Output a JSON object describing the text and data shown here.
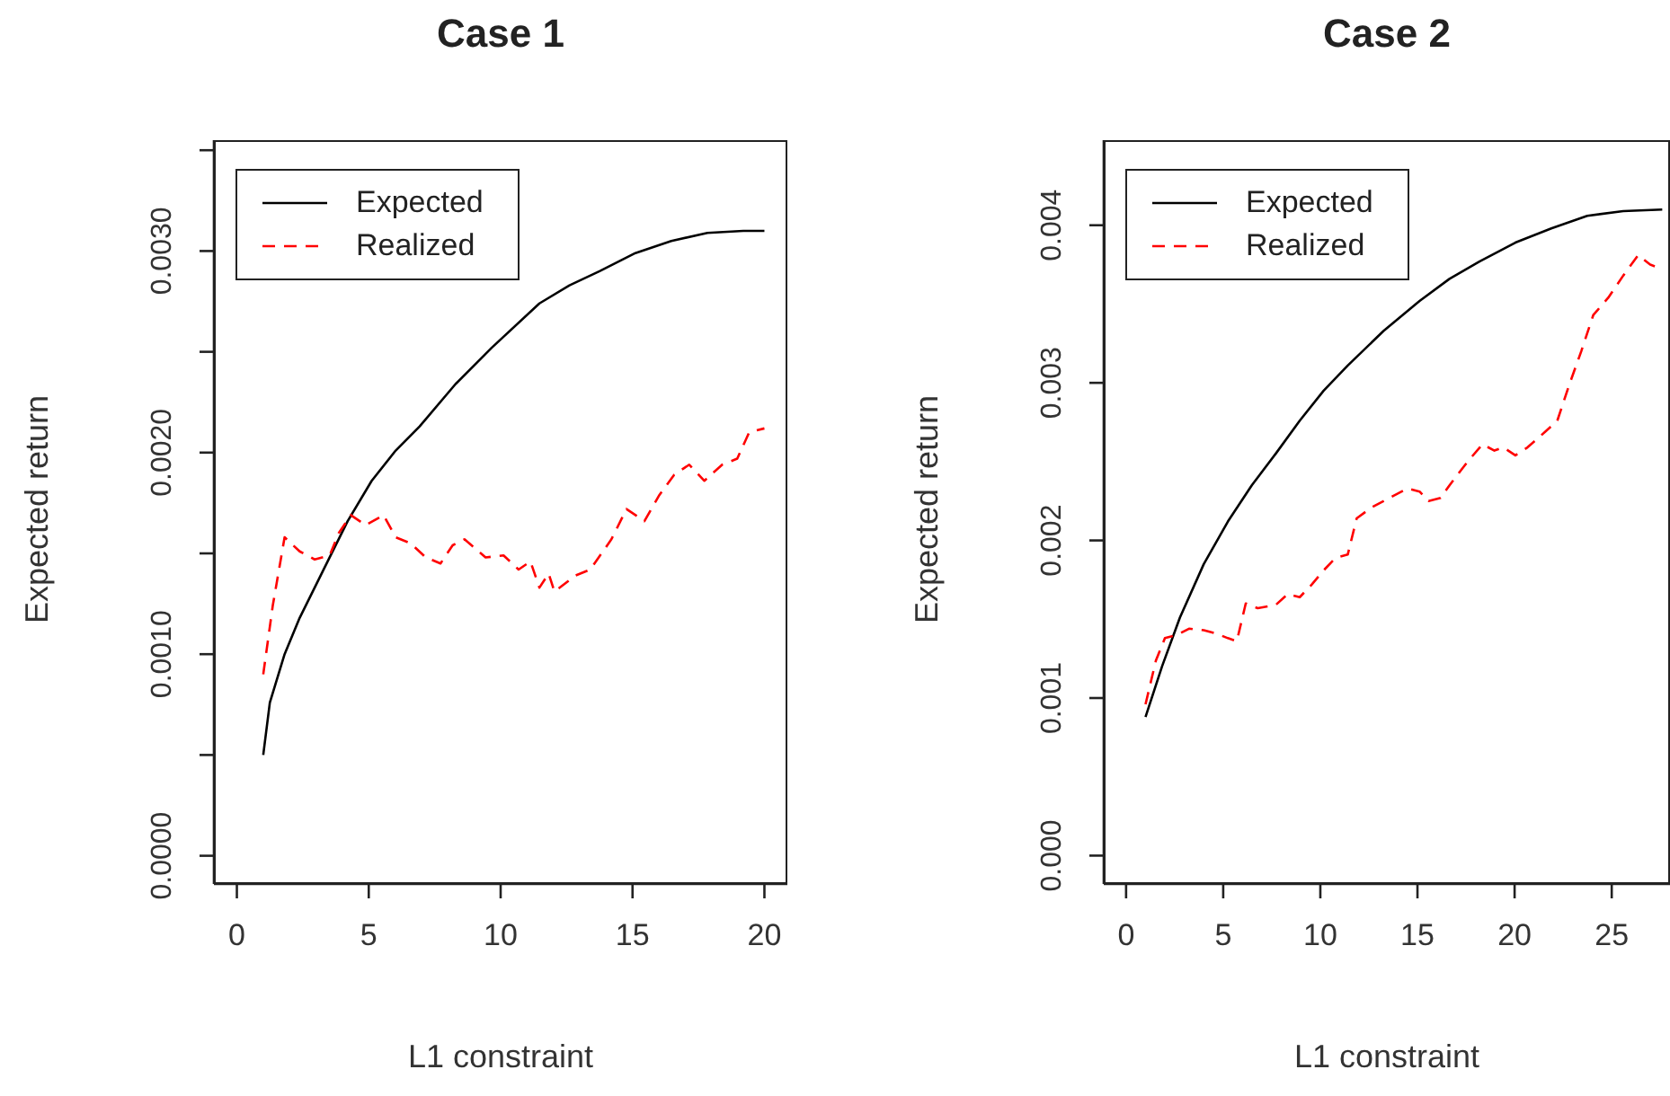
{
  "chart_data": [
    {
      "type": "line",
      "title": "Case 1",
      "xlabel": "L1 constraint",
      "ylabel": "Expected return",
      "legend": "top left",
      "grid": false,
      "marker": "none",
      "xlim": [
        -0.87,
        20.87
      ],
      "xticks": [
        0,
        5,
        10,
        15,
        20
      ],
      "ylim": [
        -0.00014,
        0.00355
      ],
      "yticks": [
        {
          "value": 0,
          "label": "0.0000"
        },
        {
          "value": 0.0005,
          "label": null
        },
        {
          "value": 0.001,
          "label": "0.0010"
        },
        {
          "value": 0.0015,
          "label": null
        },
        {
          "value": 0.002,
          "label": "0.0020"
        },
        {
          "value": 0.0025,
          "label": null
        },
        {
          "value": 0.003,
          "label": "0.0030"
        },
        {
          "value": 0.0035,
          "label": null
        }
      ],
      "series": [
        {
          "name": "Expected",
          "color": "#000000",
          "line_style": "solid",
          "x": [
            1,
            1.25,
            1.81,
            2.38,
            3.29,
            4.2,
            5.11,
            6.02,
            6.93,
            8.29,
            9.66,
            11.47,
            12.61,
            13.75,
            15.11,
            16.47,
            17.84,
            19.2,
            20
          ],
          "values": [
            0.0005,
            0.00076,
            0.001,
            0.00118,
            0.00142,
            0.00166,
            0.00186,
            0.00201,
            0.00213,
            0.00234,
            0.00252,
            0.00274,
            0.00283,
            0.0029,
            0.00299,
            0.00305,
            0.00309,
            0.0031,
            0.0031
          ]
        },
        {
          "name": "Realized",
          "color": "#ff0000",
          "line_style": "dashed",
          "x": [
            1,
            1.36,
            1.81,
            2.38,
            2.95,
            3.52,
            3.86,
            4.32,
            4.88,
            5.56,
            6.02,
            6.59,
            7.16,
            7.72,
            8.18,
            8.63,
            9.43,
            10.11,
            10.68,
            11.13,
            11.47,
            11.82,
            12.04,
            12.84,
            13.4,
            14.2,
            14.77,
            15.45,
            16.02,
            16.58,
            17.15,
            17.72,
            18.4,
            18.97,
            19.42,
            20
          ],
          "values": [
            0.0009,
            0.00124,
            0.00158,
            0.00151,
            0.00147,
            0.00149,
            0.0016,
            0.00169,
            0.00164,
            0.00169,
            0.00158,
            0.00155,
            0.00148,
            0.00145,
            0.00154,
            0.00157,
            0.00148,
            0.00149,
            0.00142,
            0.00146,
            0.00133,
            0.0014,
            0.00131,
            0.00139,
            0.00142,
            0.00157,
            0.00172,
            0.00166,
            0.00179,
            0.00189,
            0.00194,
            0.00186,
            0.00194,
            0.00197,
            0.0021,
            0.00212
          ]
        }
      ]
    },
    {
      "type": "line",
      "title": "Case 2",
      "xlabel": "L1 constraint",
      "ylabel": "Expected return",
      "legend": "top left",
      "grid": false,
      "marker": "none",
      "xlim": [
        -1.15,
        28
      ],
      "xticks": [
        0,
        5,
        10,
        15,
        20,
        25
      ],
      "ylim": [
        -0.00018,
        0.00454
      ],
      "yticks": [
        {
          "value": 0,
          "label": "0.000"
        },
        {
          "value": 0.001,
          "label": "0.001"
        },
        {
          "value": 0.002,
          "label": "0.002"
        },
        {
          "value": 0.003,
          "label": "0.003"
        },
        {
          "value": 0.004,
          "label": "0.004"
        }
      ],
      "series": [
        {
          "name": "Expected",
          "color": "#000000",
          "line_style": "solid",
          "x": [
            1,
            1.85,
            2.77,
            4,
            5.24,
            6.47,
            7.7,
            8.94,
            10.17,
            11.41,
            13.26,
            15.11,
            16.65,
            18.19,
            20.04,
            21.89,
            23.74,
            25.59,
            27.6
          ],
          "values": [
            0.00088,
            0.0012,
            0.00151,
            0.00185,
            0.00212,
            0.00235,
            0.00255,
            0.00276,
            0.00295,
            0.00311,
            0.00333,
            0.00352,
            0.00366,
            0.00377,
            0.00389,
            0.00398,
            0.00406,
            0.00409,
            0.0041
          ]
        },
        {
          "name": "Realized",
          "color": "#ff0000",
          "line_style": "dashed",
          "x": [
            1,
            1.54,
            2,
            2.62,
            3.24,
            4,
            4.62,
            5.24,
            5.7,
            6.16,
            6.78,
            7.7,
            8.32,
            8.94,
            9.56,
            10.17,
            10.79,
            11.41,
            11.87,
            12.64,
            13.56,
            14.49,
            15.11,
            15.57,
            16.19,
            16.65,
            17.58,
            18.35,
            18.96,
            19.42,
            20.04,
            20.66,
            21.58,
            22.2,
            22.82,
            23.43,
            24.05,
            24.82,
            25.59,
            26.36,
            26.98,
            27.44
          ],
          "values": [
            0.00096,
            0.00124,
            0.00138,
            0.0014,
            0.00144,
            0.00143,
            0.00141,
            0.00138,
            0.00136,
            0.0016,
            0.00157,
            0.00159,
            0.00166,
            0.00164,
            0.00172,
            0.00181,
            0.00189,
            0.00191,
            0.00214,
            0.00221,
            0.00227,
            0.00233,
            0.00231,
            0.00225,
            0.00227,
            0.00235,
            0.0025,
            0.00261,
            0.00257,
            0.00259,
            0.00254,
            0.00259,
            0.00269,
            0.00276,
            0.00299,
            0.0032,
            0.00343,
            0.00354,
            0.00368,
            0.00381,
            0.00375,
            0.00373
          ]
        }
      ]
    }
  ]
}
